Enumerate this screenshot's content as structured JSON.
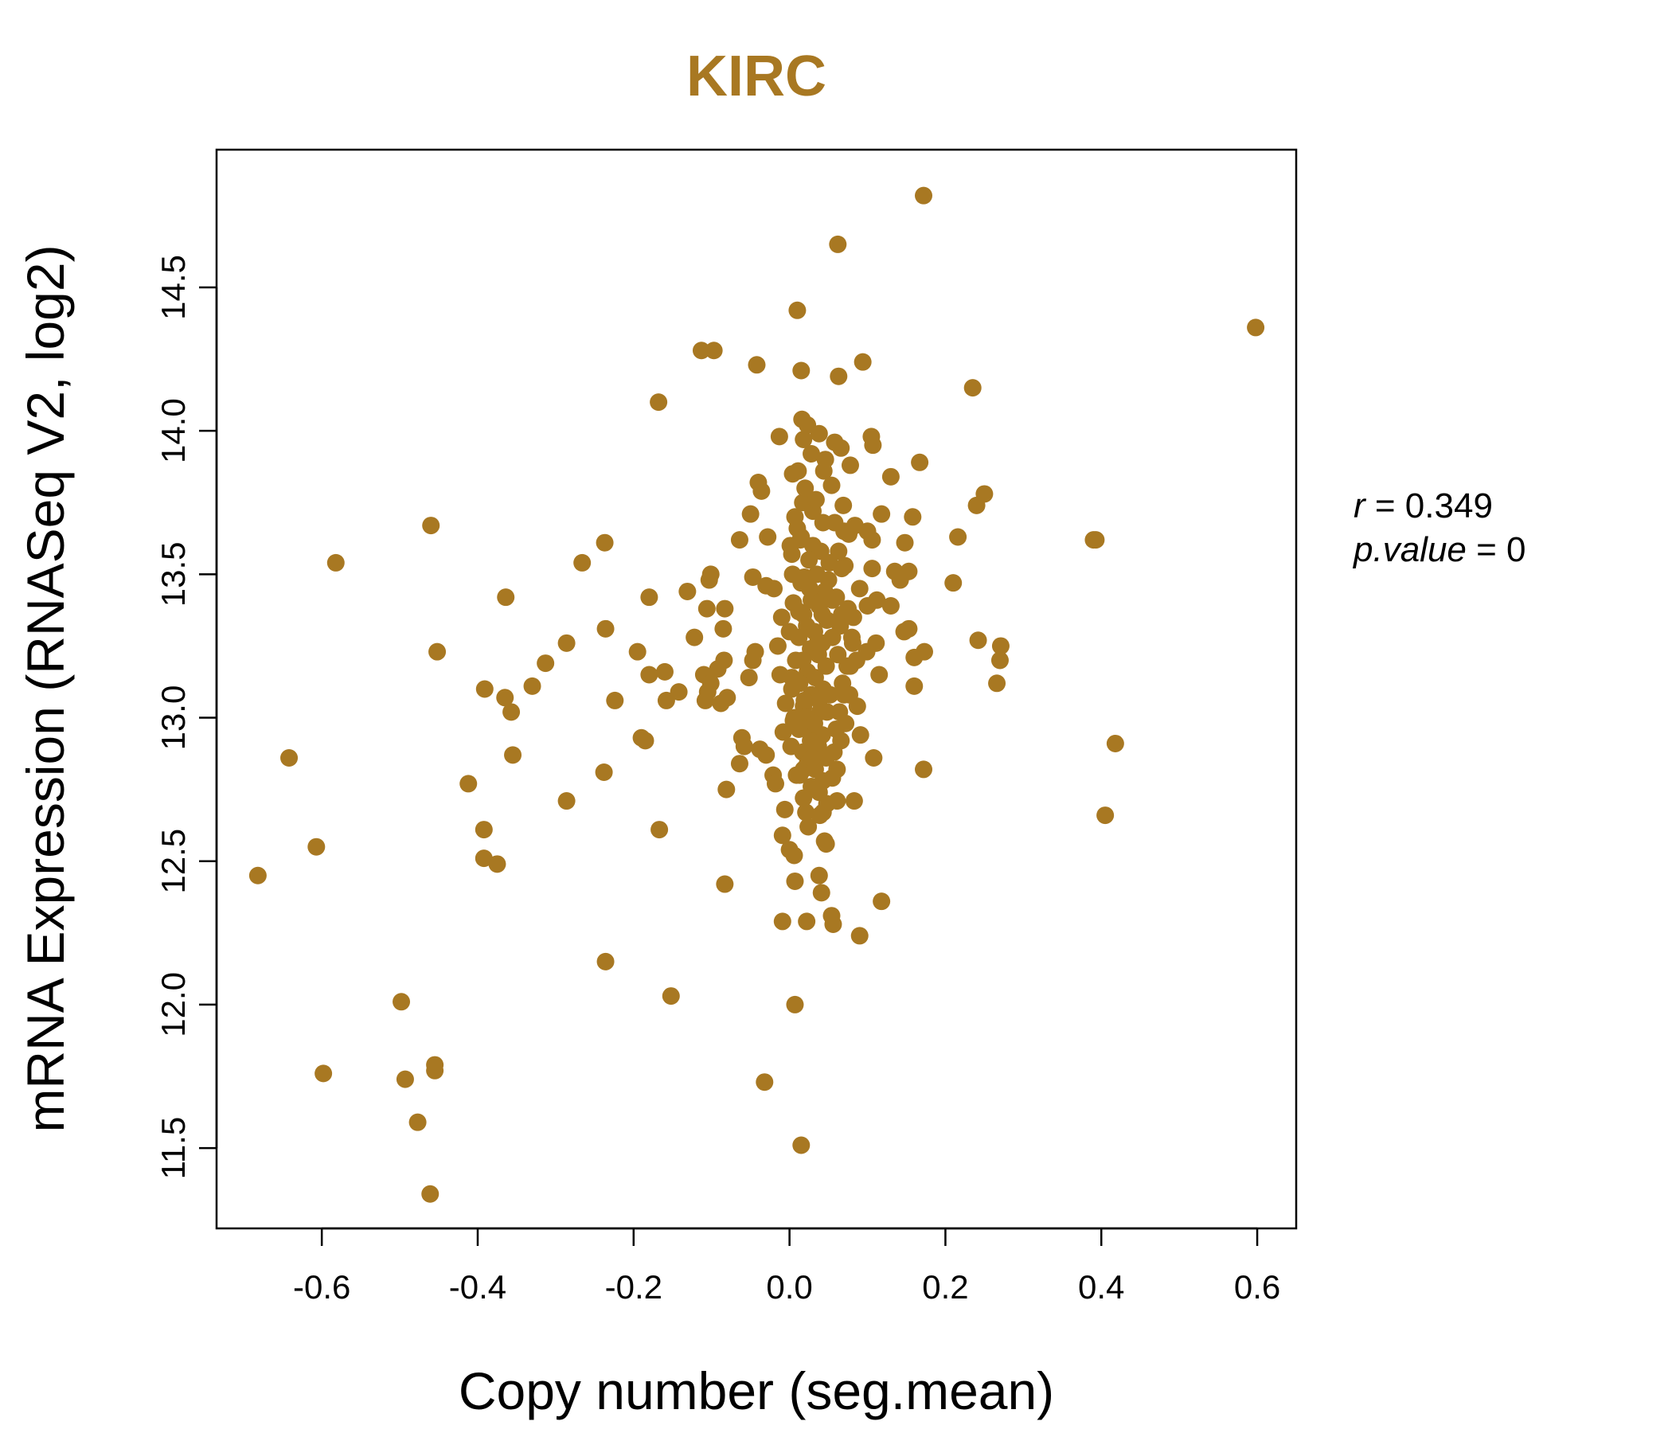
{
  "chart_data": {
    "type": "scatter",
    "title": "KIRC",
    "xlabel": "Copy number (seg.mean)",
    "ylabel": "mRNA Expression (RNASeq V2, log2)",
    "xlim": [
      -0.735,
      0.65
    ],
    "ylim": [
      11.22,
      14.98
    ],
    "x_ticks": [
      -0.6,
      -0.4,
      -0.2,
      0.0,
      0.2,
      0.4,
      0.6
    ],
    "x_tick_labels": [
      "-0.6",
      "-0.4",
      "-0.2",
      "0.0",
      "0.2",
      "0.4",
      "0.6"
    ],
    "y_ticks": [
      11.5,
      12.0,
      12.5,
      13.0,
      13.5,
      14.0,
      14.5
    ],
    "y_tick_labels": [
      "11.5",
      "12.0",
      "12.5",
      "13.0",
      "13.5",
      "14.0",
      "14.5"
    ],
    "grid": false,
    "legend": "none",
    "color": "#A87822",
    "annotations": {
      "r_label": "r",
      "r_value": "= 0.349",
      "p_label": "p.value",
      "p_value": "= 0"
    },
    "points": [
      [
        0.172,
        14.82
      ],
      [
        0.062,
        14.65
      ],
      [
        0.01,
        14.42
      ],
      [
        0.598,
        14.36
      ],
      [
        -0.113,
        14.28
      ],
      [
        -0.097,
        14.28
      ],
      [
        -0.042,
        14.23
      ],
      [
        0.094,
        14.24
      ],
      [
        0.015,
        14.21
      ],
      [
        0.063,
        14.19
      ],
      [
        0.235,
        14.15
      ],
      [
        -0.168,
        14.1
      ],
      [
        0.016,
        14.04
      ],
      [
        0.023,
        14.02
      ],
      [
        0.038,
        13.99
      ],
      [
        -0.013,
        13.98
      ],
      [
        0.018,
        13.97
      ],
      [
        0.058,
        13.96
      ],
      [
        0.066,
        13.94
      ],
      [
        0.105,
        13.98
      ],
      [
        0.107,
        13.95
      ],
      [
        0.028,
        13.92
      ],
      [
        0.046,
        13.9
      ],
      [
        0.167,
        13.89
      ],
      [
        0.078,
        13.88
      ],
      [
        0.004,
        13.85
      ],
      [
        0.13,
        13.84
      ],
      [
        -0.04,
        13.82
      ],
      [
        0.054,
        13.81
      ],
      [
        -0.036,
        13.79
      ],
      [
        0.25,
        13.78
      ],
      [
        0.017,
        13.75
      ],
      [
        0.069,
        13.74
      ],
      [
        0.24,
        13.74
      ],
      [
        -0.05,
        13.71
      ],
      [
        0.118,
        13.71
      ],
      [
        0.158,
        13.7
      ],
      [
        0.043,
        13.68
      ],
      [
        0.084,
        13.67
      ],
      [
        -0.46,
        13.67
      ],
      [
        0.07,
        13.65
      ],
      [
        0.1,
        13.65
      ],
      [
        0.076,
        13.64
      ],
      [
        0.015,
        13.63
      ],
      [
        -0.028,
        13.63
      ],
      [
        -0.064,
        13.62
      ],
      [
        0.216,
        13.63
      ],
      [
        0.39,
        13.62
      ],
      [
        0.393,
        13.62
      ],
      [
        -0.237,
        13.61
      ],
      [
        0.106,
        13.62
      ],
      [
        0.148,
        13.61
      ],
      [
        0.03,
        13.6
      ],
      [
        0.003,
        13.57
      ],
      [
        -0.582,
        13.54
      ],
      [
        -0.266,
        13.54
      ],
      [
        0.051,
        13.54
      ],
      [
        0.071,
        13.53
      ],
      [
        0.106,
        13.52
      ],
      [
        0.135,
        13.51
      ],
      [
        0.153,
        13.51
      ],
      [
        -0.101,
        13.5
      ],
      [
        -0.047,
        13.49
      ],
      [
        -0.103,
        13.48
      ],
      [
        0.019,
        13.49
      ],
      [
        0.142,
        13.48
      ],
      [
        0.21,
        13.47
      ],
      [
        -0.03,
        13.46
      ],
      [
        -0.02,
        13.45
      ],
      [
        0.09,
        13.45
      ],
      [
        -0.131,
        13.44
      ],
      [
        -0.364,
        13.42
      ],
      [
        -0.18,
        13.42
      ],
      [
        0.055,
        13.41
      ],
      [
        0.112,
        13.41
      ],
      [
        -0.106,
        13.38
      ],
      [
        -0.083,
        13.38
      ],
      [
        0.1,
        13.39
      ],
      [
        0.13,
        13.39
      ],
      [
        0.012,
        13.37
      ],
      [
        0.042,
        13.36
      ],
      [
        0.067,
        13.36
      ],
      [
        0.082,
        13.35
      ],
      [
        -0.236,
        13.31
      ],
      [
        -0.085,
        13.31
      ],
      [
        0.147,
        13.3
      ],
      [
        0.153,
        13.31
      ],
      [
        -0.122,
        13.28
      ],
      [
        0.242,
        13.27
      ],
      [
        -0.286,
        13.26
      ],
      [
        0.271,
        13.25
      ],
      [
        0.081,
        13.26
      ],
      [
        0.111,
        13.26
      ],
      [
        -0.452,
        13.23
      ],
      [
        -0.195,
        13.23
      ],
      [
        -0.044,
        13.23
      ],
      [
        0.099,
        13.23
      ],
      [
        0.173,
        13.23
      ],
      [
        0.16,
        13.21
      ],
      [
        -0.084,
        13.2
      ],
      [
        -0.047,
        13.2
      ],
      [
        0.086,
        13.2
      ],
      [
        0.27,
        13.2
      ],
      [
        -0.313,
        13.19
      ],
      [
        0.074,
        13.18
      ],
      [
        -0.092,
        13.17
      ],
      [
        -0.16,
        13.16
      ],
      [
        -0.18,
        13.15
      ],
      [
        -0.11,
        13.15
      ],
      [
        0.115,
        13.15
      ],
      [
        -0.052,
        13.14
      ],
      [
        0.003,
        13.14
      ],
      [
        -0.33,
        13.11
      ],
      [
        -0.101,
        13.12
      ],
      [
        0.266,
        13.12
      ],
      [
        0.16,
        13.11
      ],
      [
        -0.391,
        13.1
      ],
      [
        -0.142,
        13.09
      ],
      [
        -0.105,
        13.09
      ],
      [
        0.077,
        13.08
      ],
      [
        -0.08,
        13.07
      ],
      [
        -0.365,
        13.07
      ],
      [
        -0.224,
        13.06
      ],
      [
        -0.158,
        13.06
      ],
      [
        -0.108,
        13.06
      ],
      [
        -0.088,
        13.05
      ],
      [
        0.087,
        13.04
      ],
      [
        0.039,
        13.02
      ],
      [
        -0.357,
        13.02
      ],
      [
        0.005,
        12.99
      ],
      [
        0.026,
        12.97
      ],
      [
        0.06,
        12.96
      ],
      [
        -0.061,
        12.93
      ],
      [
        0.091,
        12.94
      ],
      [
        -0.19,
        12.93
      ],
      [
        -0.185,
        12.92
      ],
      [
        0.418,
        12.91
      ],
      [
        -0.058,
        12.9
      ],
      [
        -0.038,
        12.89
      ],
      [
        -0.03,
        12.87
      ],
      [
        -0.355,
        12.87
      ],
      [
        -0.642,
        12.86
      ],
      [
        0.108,
        12.86
      ],
      [
        -0.064,
        12.84
      ],
      [
        0.018,
        12.82
      ],
      [
        -0.238,
        12.81
      ],
      [
        0.172,
        12.82
      ],
      [
        -0.021,
        12.8
      ],
      [
        0.055,
        12.79
      ],
      [
        -0.412,
        12.77
      ],
      [
        -0.018,
        12.77
      ],
      [
        0.034,
        12.75
      ],
      [
        -0.081,
        12.75
      ],
      [
        0.083,
        12.71
      ],
      [
        -0.286,
        12.71
      ],
      [
        0.061,
        12.71
      ],
      [
        -0.006,
        12.68
      ],
      [
        0.021,
        12.67
      ],
      [
        0.043,
        12.67
      ],
      [
        0.405,
        12.66
      ],
      [
        -0.392,
        12.61
      ],
      [
        -0.167,
        12.61
      ],
      [
        -0.009,
        12.59
      ],
      [
        0.045,
        12.57
      ],
      [
        0.047,
        12.56
      ],
      [
        -0.607,
        12.55
      ],
      [
        0.0,
        12.54
      ],
      [
        0.006,
        12.52
      ],
      [
        -0.392,
        12.51
      ],
      [
        -0.375,
        12.49
      ],
      [
        -0.682,
        12.45
      ],
      [
        0.038,
        12.45
      ],
      [
        0.007,
        12.43
      ],
      [
        -0.083,
        12.42
      ],
      [
        0.041,
        12.39
      ],
      [
        0.118,
        12.36
      ],
      [
        0.054,
        12.31
      ],
      [
        -0.009,
        12.29
      ],
      [
        0.022,
        12.29
      ],
      [
        0.056,
        12.28
      ],
      [
        0.09,
        12.24
      ],
      [
        -0.236,
        12.15
      ],
      [
        -0.152,
        12.03
      ],
      [
        0.007,
        12.0
      ],
      [
        -0.498,
        12.01
      ],
      [
        -0.455,
        11.79
      ],
      [
        -0.455,
        11.77
      ],
      [
        -0.598,
        11.76
      ],
      [
        -0.493,
        11.74
      ],
      [
        -0.032,
        11.73
      ],
      [
        -0.477,
        11.59
      ],
      [
        0.015,
        11.51
      ],
      [
        -0.461,
        11.34
      ],
      [
        0.02,
        13.8
      ],
      [
        0.03,
        13.72
      ],
      [
        0.01,
        13.66
      ],
      [
        0.04,
        13.58
      ],
      [
        0.025,
        13.55
      ],
      [
        0.035,
        13.5
      ],
      [
        0.015,
        13.47
      ],
      [
        0.045,
        13.44
      ],
      [
        0.028,
        13.41
      ],
      [
        0.038,
        13.39
      ],
      [
        0.018,
        13.36
      ],
      [
        0.048,
        13.34
      ],
      [
        0.022,
        13.32
      ],
      [
        0.032,
        13.3
      ],
      [
        0.012,
        13.28
      ],
      [
        0.042,
        13.26
      ],
      [
        0.027,
        13.24
      ],
      [
        0.037,
        13.22
      ],
      [
        0.017,
        13.2
      ],
      [
        0.047,
        13.18
      ],
      [
        0.023,
        13.16
      ],
      [
        0.033,
        13.14
      ],
      [
        0.013,
        13.12
      ],
      [
        0.043,
        13.1
      ],
      [
        0.028,
        13.08
      ],
      [
        0.038,
        13.06
      ],
      [
        0.018,
        13.04
      ],
      [
        0.048,
        13.02
      ],
      [
        0.022,
        13.0
      ],
      [
        0.032,
        12.98
      ],
      [
        0.012,
        12.96
      ],
      [
        0.042,
        12.94
      ],
      [
        0.027,
        12.92
      ],
      [
        0.037,
        12.9
      ],
      [
        0.017,
        12.88
      ],
      [
        0.047,
        12.86
      ],
      [
        0.023,
        12.84
      ],
      [
        0.033,
        12.82
      ],
      [
        0.013,
        12.8
      ],
      [
        0.043,
        12.78
      ],
      [
        0.028,
        12.76
      ],
      [
        0.038,
        12.74
      ],
      [
        0.018,
        12.72
      ],
      [
        0.048,
        12.7
      ],
      [
        0.005,
        13.4
      ],
      [
        0.06,
        13.42
      ],
      [
        0.0,
        13.3
      ],
      [
        0.065,
        13.32
      ],
      [
        0.008,
        13.2
      ],
      [
        0.062,
        13.22
      ],
      [
        0.003,
        13.1
      ],
      [
        0.068,
        13.12
      ],
      [
        0.006,
        13.0
      ],
      [
        0.064,
        13.02
      ],
      [
        0.002,
        12.9
      ],
      [
        0.066,
        12.92
      ],
      [
        0.009,
        12.8
      ],
      [
        0.061,
        12.82
      ],
      [
        0.004,
        13.5
      ],
      [
        0.067,
        13.52
      ],
      [
        0.001,
        13.6
      ],
      [
        0.063,
        13.58
      ],
      [
        0.007,
        13.7
      ],
      [
        0.058,
        13.68
      ],
      [
        -0.01,
        13.35
      ],
      [
        0.075,
        13.38
      ],
      [
        -0.012,
        13.15
      ],
      [
        0.078,
        13.18
      ],
      [
        -0.008,
        12.95
      ],
      [
        0.072,
        12.98
      ],
      [
        -0.015,
        13.25
      ],
      [
        0.08,
        13.28
      ],
      [
        -0.005,
        13.05
      ],
      [
        0.07,
        13.08
      ],
      [
        0.05,
        13.48
      ],
      [
        0.055,
        13.28
      ],
      [
        0.052,
        13.08
      ],
      [
        0.057,
        12.88
      ],
      [
        0.014,
        13.62
      ],
      [
        0.026,
        13.45
      ],
      [
        0.036,
        13.26
      ],
      [
        0.019,
        13.06
      ],
      [
        0.029,
        12.86
      ],
      [
        0.039,
        12.66
      ],
      [
        0.024,
        12.62
      ],
      [
        0.034,
        13.76
      ],
      [
        0.044,
        13.86
      ],
      [
        0.011,
        13.86
      ]
    ]
  }
}
